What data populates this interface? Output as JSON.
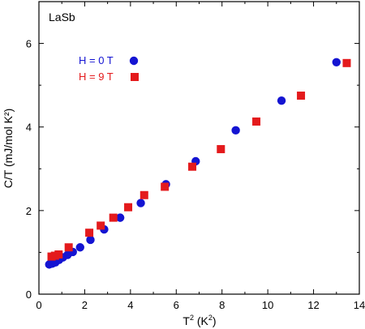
{
  "chart_data": {
    "type": "scatter",
    "sample_label": "LaSb",
    "xlabel": {
      "base": "T",
      "sup": "2",
      "rest": " (K",
      "sup2": "2",
      "close": ")"
    },
    "ylabel": "C/T (mJ/mol K²)",
    "xlim": [
      0,
      14
    ],
    "ylim": [
      0,
      7
    ],
    "x_ticks": [
      0,
      2,
      4,
      6,
      8,
      10,
      12,
      14
    ],
    "y_ticks": [
      0,
      2,
      4,
      6
    ],
    "legend_position": "top-left",
    "series": [
      {
        "name": "H = 0 T",
        "marker": "circle",
        "color": "#1414d2",
        "points": [
          [
            0.45,
            0.71
          ],
          [
            0.58,
            0.73
          ],
          [
            0.72,
            0.76
          ],
          [
            0.88,
            0.82
          ],
          [
            1.05,
            0.88
          ],
          [
            1.25,
            0.94
          ],
          [
            1.48,
            1.01
          ],
          [
            1.8,
            1.12
          ],
          [
            2.25,
            1.3
          ],
          [
            2.85,
            1.55
          ],
          [
            3.55,
            1.83
          ],
          [
            4.45,
            2.18
          ],
          [
            5.55,
            2.63
          ],
          [
            6.85,
            3.18
          ],
          [
            8.6,
            3.92
          ],
          [
            10.6,
            4.63
          ],
          [
            13.0,
            5.55
          ]
        ]
      },
      {
        "name": "H = 9 T",
        "marker": "square",
        "color": "#e41a1c",
        "points": [
          [
            0.55,
            0.9
          ],
          [
            0.7,
            0.92
          ],
          [
            0.86,
            0.95
          ],
          [
            1.3,
            1.12
          ],
          [
            2.2,
            1.47
          ],
          [
            2.7,
            1.64
          ],
          [
            3.25,
            1.83
          ],
          [
            3.9,
            2.08
          ],
          [
            4.6,
            2.37
          ],
          [
            5.5,
            2.57
          ],
          [
            6.7,
            3.05
          ],
          [
            7.95,
            3.47
          ],
          [
            9.5,
            4.13
          ],
          [
            11.45,
            4.75
          ],
          [
            13.45,
            5.53
          ]
        ]
      }
    ]
  }
}
